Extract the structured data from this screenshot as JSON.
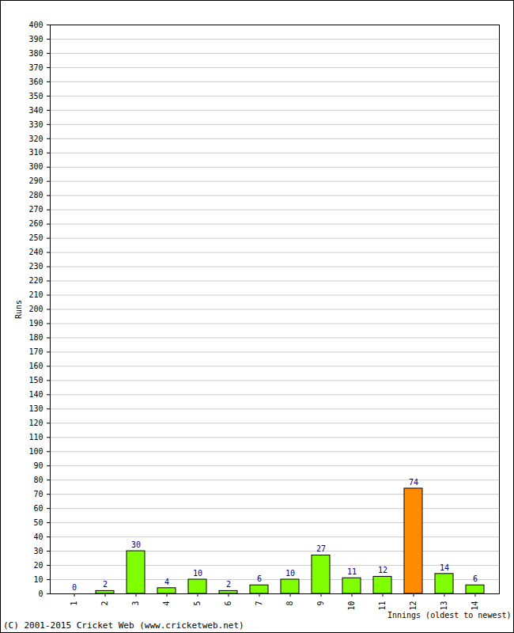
{
  "chart_data": {
    "type": "bar",
    "caption": "(C) 2001-2015 Cricket Web (www.cricketweb.net)",
    "x_label": "Innings (oldest to newest)",
    "y_label": "Runs",
    "categories": [
      "1",
      "2",
      "3",
      "4",
      "5",
      "6",
      "7",
      "8",
      "9",
      "10",
      "11",
      "12",
      "13",
      "14"
    ],
    "values": [
      0,
      2,
      30,
      4,
      10,
      2,
      6,
      10,
      27,
      11,
      12,
      74,
      14,
      6
    ],
    "colors": [
      "#80ff00",
      "#80ff00",
      "#80ff00",
      "#80ff00",
      "#80ff00",
      "#80ff00",
      "#80ff00",
      "#80ff00",
      "#80ff00",
      "#80ff00",
      "#80ff00",
      "#ff8c00",
      "#80ff00",
      "#80ff00"
    ],
    "ylim": [
      0,
      400
    ],
    "yticks": [
      0,
      10,
      20,
      30,
      40,
      50,
      60,
      70,
      80,
      90,
      100,
      110,
      120,
      130,
      140,
      150,
      160,
      170,
      180,
      190,
      200,
      210,
      220,
      230,
      240,
      250,
      260,
      270,
      280,
      290,
      300,
      310,
      320,
      330,
      340,
      350,
      360,
      370,
      380,
      390,
      400
    ],
    "grid": true,
    "data_labels": true
  }
}
